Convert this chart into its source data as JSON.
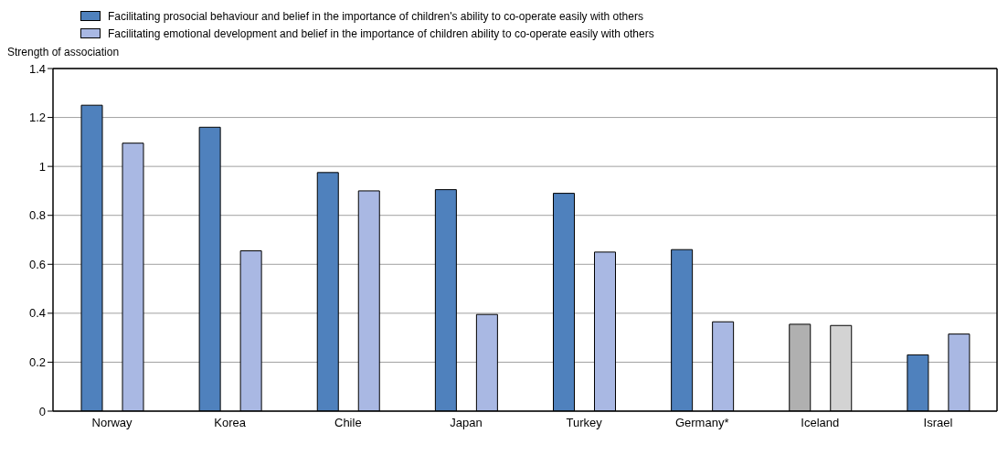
{
  "chart_data": {
    "type": "bar",
    "ylabel": "Strength of association",
    "categories": [
      "Norway",
      "Korea",
      "Chile",
      "Japan",
      "Turkey",
      "Germany*",
      "Iceland",
      "Israel"
    ],
    "series": [
      {
        "name": "Facilitating prosocial behaviour and belief in the importance of children's ability to co-operate easily with others",
        "color": "#4f81bd",
        "colors": [
          "#4f81bd",
          "#4f81bd",
          "#4f81bd",
          "#4f81bd",
          "#4f81bd",
          "#4f81bd",
          "#b0b0b0",
          "#4f81bd"
        ],
        "values": [
          1.25,
          1.16,
          0.975,
          0.905,
          0.89,
          0.66,
          0.355,
          0.23
        ]
      },
      {
        "name": "Facilitating emotional development and belief in the importance of children ability to co-operate easily with others",
        "color": "#a9b8e3",
        "colors": [
          "#a9b8e3",
          "#a9b8e3",
          "#a9b8e3",
          "#a9b8e3",
          "#a9b8e3",
          "#a9b8e3",
          "#d3d3d3",
          "#a9b8e3"
        ],
        "values": [
          1.095,
          0.655,
          0.9,
          0.395,
          0.65,
          0.365,
          0.35,
          0.315
        ]
      }
    ],
    "ylim": [
      0,
      1.4
    ],
    "yticks": [
      0,
      0.2,
      0.4,
      0.6,
      0.8,
      1,
      1.2,
      1.4
    ],
    "grid": "y",
    "legend": "top"
  }
}
